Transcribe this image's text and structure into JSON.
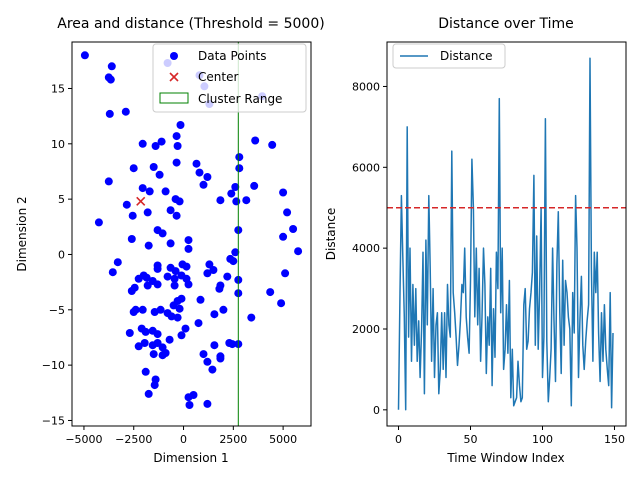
{
  "chart_data": [
    {
      "type": "scatter",
      "title": "Area and distance (Threshold = 5000)",
      "xlabel": "Dimension 1",
      "ylabel": "Dimension 2",
      "xlim": [
        -5600,
        6400
      ],
      "ylim": [
        -15.5,
        19.2
      ],
      "xticks": [
        -5000,
        -2500,
        0,
        2500,
        5000
      ],
      "xtick_labels": [
        "−5000",
        "−2500",
        "0",
        "2500",
        "5000"
      ],
      "yticks": [
        -15,
        -10,
        -5,
        0,
        5,
        10,
        15
      ],
      "ytick_labels": [
        "−15",
        "−10",
        "−5",
        "0",
        "5",
        "10",
        "15"
      ],
      "legend_placement": "top-right",
      "legend": [
        "Data Points",
        "Center",
        "Cluster Range"
      ],
      "colors": {
        "points": "#0000ff",
        "center": "#d62728",
        "range": "#008000"
      },
      "center": {
        "x": -2150,
        "y": 4.8
      },
      "cluster_range_x": 2750,
      "points": [
        [
          -4950,
          18.0
        ],
        [
          -3600,
          17.0
        ],
        [
          -3750,
          16.0
        ],
        [
          -3650,
          15.8
        ],
        [
          -3700,
          12.7
        ],
        [
          -2900,
          12.9
        ],
        [
          -800,
          17.3
        ],
        [
          800,
          16.2
        ],
        [
          1050,
          15.2
        ],
        [
          1300,
          13.6
        ],
        [
          3950,
          14.3
        ],
        [
          -2050,
          10.0
        ],
        [
          -1400,
          9.8
        ],
        [
          -1100,
          10.2
        ],
        [
          -150,
          11.7
        ],
        [
          -350,
          10.7
        ],
        [
          -300,
          9.8
        ],
        [
          3600,
          10.3
        ],
        [
          4450,
          9.9
        ],
        [
          -2500,
          7.8
        ],
        [
          -1500,
          7.9
        ],
        [
          -1200,
          7.2
        ],
        [
          -350,
          8.3
        ],
        [
          650,
          8.2
        ],
        [
          800,
          7.4
        ],
        [
          1200,
          7.0
        ],
        [
          1000,
          6.3
        ],
        [
          2800,
          8.8
        ],
        [
          2800,
          7.8
        ],
        [
          3550,
          6.2
        ],
        [
          -3750,
          6.6
        ],
        [
          -2050,
          6.0
        ],
        [
          -1700,
          5.7
        ],
        [
          -900,
          5.7
        ],
        [
          -400,
          5.0
        ],
        [
          -200,
          4.8
        ],
        [
          -2850,
          4.5
        ],
        [
          -1800,
          3.8
        ],
        [
          -2550,
          3.5
        ],
        [
          -650,
          4.0
        ],
        [
          -350,
          3.5
        ],
        [
          1850,
          4.9
        ],
        [
          2400,
          5.5
        ],
        [
          2600,
          6.1
        ],
        [
          2650,
          4.8
        ],
        [
          3150,
          4.9
        ],
        [
          5000,
          5.6
        ],
        [
          5200,
          3.8
        ],
        [
          5500,
          2.3
        ],
        [
          -4250,
          2.9
        ],
        [
          -1300,
          2.2
        ],
        [
          -1050,
          1.9
        ],
        [
          -2600,
          1.4
        ],
        [
          -1750,
          0.8
        ],
        [
          -650,
          1.0
        ],
        [
          250,
          1.3
        ],
        [
          250,
          0.5
        ],
        [
          2750,
          2.2
        ],
        [
          5000,
          1.6
        ],
        [
          5750,
          0.3
        ],
        [
          -3300,
          -0.7
        ],
        [
          -3550,
          -1.6
        ],
        [
          -1300,
          -1.0
        ],
        [
          -1300,
          -1.3
        ],
        [
          -650,
          -1.2
        ],
        [
          -400,
          -1.5
        ],
        [
          -50,
          -0.9
        ],
        [
          150,
          -1.1
        ],
        [
          1300,
          -0.9
        ],
        [
          2500,
          -0.6
        ],
        [
          2350,
          -0.4
        ],
        [
          2600,
          0.2
        ],
        [
          -2000,
          -1.9
        ],
        [
          -1850,
          -2.1
        ],
        [
          -2250,
          -2.2
        ],
        [
          -1550,
          -2.4
        ],
        [
          -1300,
          -2.7
        ],
        [
          -800,
          -2.0
        ],
        [
          -450,
          -2.2
        ],
        [
          -100,
          -1.9
        ],
        [
          150,
          -2.2
        ],
        [
          250,
          -2.7
        ],
        [
          1200,
          -1.7
        ],
        [
          1500,
          -1.4
        ],
        [
          2200,
          -2.0
        ],
        [
          -2450,
          -3.0
        ],
        [
          -2600,
          -3.3
        ],
        [
          -1800,
          -2.8
        ],
        [
          -450,
          -2.8
        ],
        [
          1800,
          -3.1
        ],
        [
          1850,
          -2.8
        ],
        [
          2750,
          -2.3
        ],
        [
          2750,
          -3.5
        ],
        [
          4350,
          -3.4
        ],
        [
          5100,
          -1.7
        ],
        [
          -2050,
          -5.0
        ],
        [
          -2400,
          -5.0
        ],
        [
          -2500,
          -5.2
        ],
        [
          -1450,
          -5.2
        ],
        [
          -1150,
          -5.0
        ],
        [
          -800,
          -5.3
        ],
        [
          -500,
          -4.6
        ],
        [
          -300,
          -4.2
        ],
        [
          -100,
          -4.0
        ],
        [
          850,
          -4.1
        ],
        [
          -600,
          -5.6
        ],
        [
          -300,
          -5.7
        ],
        [
          -200,
          -4.9
        ],
        [
          1550,
          -5.4
        ],
        [
          2000,
          -5.0
        ],
        [
          3400,
          -5.7
        ],
        [
          4900,
          -4.4
        ],
        [
          -2700,
          -7.1
        ],
        [
          -2100,
          -6.7
        ],
        [
          -1900,
          -7.0
        ],
        [
          -1550,
          -6.9
        ],
        [
          -1300,
          -7.2
        ],
        [
          -700,
          -7.7
        ],
        [
          -100,
          -7.3
        ],
        [
          100,
          -6.7
        ],
        [
          750,
          -6.2
        ],
        [
          -2250,
          -8.3
        ],
        [
          -1950,
          -8.0
        ],
        [
          -1550,
          -8.2
        ],
        [
          -1300,
          -8.0
        ],
        [
          -1050,
          -8.4
        ],
        [
          -1500,
          -9.0
        ],
        [
          -900,
          -8.9
        ],
        [
          -1050,
          -9.1
        ],
        [
          1000,
          -9.0
        ],
        [
          1200,
          -9.7
        ],
        [
          1850,
          -9.4
        ],
        [
          1850,
          -9.2
        ],
        [
          2300,
          -8.0
        ],
        [
          2450,
          -8.1
        ],
        [
          2750,
          -8.1
        ],
        [
          -1900,
          -10.6
        ],
        [
          -1400,
          -11.3
        ],
        [
          -1450,
          -11.8
        ],
        [
          -1750,
          -12.6
        ],
        [
          250,
          -12.9
        ],
        [
          500,
          -12.7
        ],
        [
          1200,
          -13.5
        ],
        [
          300,
          -13.6
        ],
        [
          1450,
          -10.4
        ],
        [
          1550,
          -8.2
        ]
      ]
    },
    {
      "type": "line",
      "title": "Distance over Time",
      "xlabel": "Time Window Index",
      "ylabel": "Distance",
      "xlim": [
        -8,
        158
      ],
      "ylim": [
        -400,
        9100
      ],
      "xticks": [
        0,
        50,
        100,
        150
      ],
      "xtick_labels": [
        "0",
        "50",
        "100",
        "150"
      ],
      "yticks": [
        0,
        2000,
        4000,
        6000,
        8000
      ],
      "ytick_labels": [
        "0",
        "2000",
        "4000",
        "6000",
        "8000"
      ],
      "threshold": 5000,
      "legend_placement": "top-left",
      "colors": {
        "line": "#1f77b4",
        "threshold": "#d62728"
      },
      "series": [
        {
          "name": "Distance",
          "x_start": 0,
          "values": [
            0,
            2900,
            5300,
            3800,
            2300,
            0,
            7000,
            1800,
            4000,
            1200,
            3100,
            1600,
            3000,
            1200,
            2200,
            800,
            2000,
            3900,
            400,
            4200,
            2100,
            5300,
            3500,
            1200,
            3000,
            800,
            2100,
            2400,
            400,
            1000,
            2400,
            1000,
            2400,
            800,
            3100,
            2100,
            1800,
            6400,
            2900,
            2400,
            1800,
            1100,
            1600,
            2200,
            3100,
            2900,
            4000,
            2300,
            1800,
            1400,
            3200,
            6200,
            5000,
            2300,
            4000,
            2100,
            3500,
            1200,
            2300,
            4000,
            3100,
            900,
            2300,
            1600,
            3500,
            600,
            2500,
            1300,
            3900,
            3000,
            7700,
            2400,
            4000,
            1000,
            1500,
            2600,
            1400,
            3200,
            300,
            1500,
            100,
            200,
            300,
            1200,
            600,
            200,
            300,
            2600,
            3000,
            1500,
            1700,
            2500,
            2900,
            3400,
            5800,
            1600,
            4300,
            1500,
            2900,
            5000,
            800,
            1800,
            7200,
            1700,
            200,
            800,
            1500,
            4000,
            2200,
            700,
            3600,
            4900,
            2400,
            900,
            3700,
            1600,
            3200,
            2900,
            2300,
            2000,
            100,
            2900,
            1900,
            5300,
            4000,
            800,
            2200,
            3300,
            1600,
            1000,
            1700,
            2200,
            2600,
            8700,
            3500,
            1200,
            3900,
            2900,
            3900,
            1900,
            700,
            2400,
            1200,
            2600,
            1500,
            1000,
            600,
            2900,
            50,
            1900
          ]
        }
      ]
    }
  ]
}
